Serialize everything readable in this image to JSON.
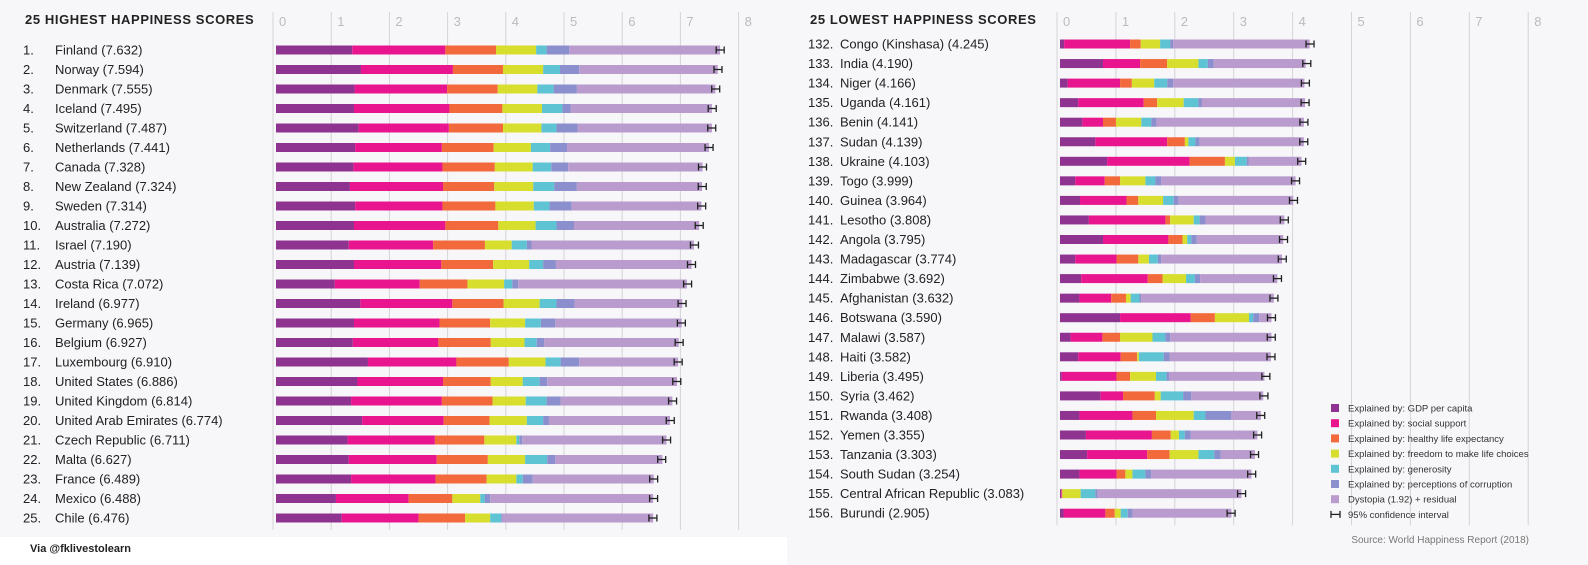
{
  "chart_data": [
    {
      "type": "bar",
      "stacked": true,
      "orientation": "horizontal",
      "title": "25 HIGHEST HAPPINESS SCORES",
      "xlim": [
        0,
        8
      ],
      "x_ticks": [
        "0",
        "1",
        "2",
        "3",
        "4",
        "5",
        "6",
        "7",
        "8"
      ],
      "grid": true,
      "rows": [
        {
          "label": "1.   Finland (7.632)",
          "segments": [
            1.31,
            1.6,
            0.87,
            0.69,
            0.18,
            0.39,
            2.59
          ],
          "score": 7.632
        },
        {
          "label": "2.   Norway (7.594)",
          "segments": [
            1.46,
            1.58,
            0.86,
            0.69,
            0.29,
            0.33,
            2.38
          ],
          "score": 7.594
        },
        {
          "label": "3.   Denmark (7.555)",
          "segments": [
            1.35,
            1.59,
            0.87,
            0.68,
            0.28,
            0.4,
            2.38
          ],
          "score": 7.555
        },
        {
          "label": "4.   Iceland (7.495)",
          "segments": [
            1.34,
            1.64,
            0.91,
            0.68,
            0.35,
            0.14,
            2.43
          ],
          "score": 7.495
        },
        {
          "label": "5.   Switzerland (7.487)",
          "segments": [
            1.42,
            1.55,
            0.93,
            0.66,
            0.26,
            0.36,
            2.31
          ],
          "score": 7.487
        },
        {
          "label": "6.   Netherlands (7.441)",
          "segments": [
            1.36,
            1.49,
            0.89,
            0.64,
            0.33,
            0.29,
            2.44
          ],
          "score": 7.441
        },
        {
          "label": "7.   Canada (7.328)",
          "segments": [
            1.33,
            1.53,
            0.9,
            0.65,
            0.32,
            0.29,
            2.31
          ],
          "score": 7.328
        },
        {
          "label": "8.   New Zealand (7.324)",
          "segments": [
            1.27,
            1.6,
            0.88,
            0.67,
            0.36,
            0.39,
            2.15
          ],
          "score": 7.324
        },
        {
          "label": "9.   Sweden (7.314)",
          "segments": [
            1.36,
            1.5,
            0.91,
            0.66,
            0.27,
            0.38,
            2.23
          ],
          "score": 7.314
        },
        {
          "label": "10.  Australia (7.272)",
          "segments": [
            1.34,
            1.57,
            0.91,
            0.64,
            0.36,
            0.3,
            2.15
          ],
          "score": 7.272
        },
        {
          "label": "11.  Israel (7.190)",
          "segments": [
            1.25,
            1.45,
            0.89,
            0.46,
            0.26,
            0.08,
            2.79
          ],
          "score": 7.19
        },
        {
          "label": "12.  Austria (7.139)",
          "segments": [
            1.34,
            1.5,
            0.89,
            0.62,
            0.24,
            0.22,
            2.33
          ],
          "score": 7.139
        },
        {
          "label": "13.  Costa Rica (7.072)",
          "segments": [
            1.01,
            1.46,
            0.82,
            0.63,
            0.14,
            0.1,
            2.9
          ],
          "score": 7.072
        },
        {
          "label": "14.  Ireland (6.977)",
          "segments": [
            1.45,
            1.58,
            0.88,
            0.62,
            0.29,
            0.31,
            1.85
          ],
          "score": 6.977
        },
        {
          "label": "15.  Germany (6.965)",
          "segments": [
            1.34,
            1.47,
            0.87,
            0.6,
            0.27,
            0.25,
            2.17
          ],
          "score": 6.965
        },
        {
          "label": "16.  Belgium (6.927)",
          "segments": [
            1.32,
            1.47,
            0.9,
            0.58,
            0.21,
            0.13,
            2.31
          ],
          "score": 6.927
        },
        {
          "label": "17.  Luxembourg (6.910)",
          "segments": [
            1.58,
            1.52,
            0.9,
            0.63,
            0.26,
            0.32,
            1.7
          ],
          "score": 6.91
        },
        {
          "label": "18.  United States (6.886)",
          "segments": [
            1.4,
            1.47,
            0.82,
            0.55,
            0.29,
            0.13,
            2.23
          ],
          "score": 6.886
        },
        {
          "label": "19.  United Kingdom (6.814)",
          "segments": [
            1.29,
            1.56,
            0.87,
            0.57,
            0.36,
            0.24,
            1.92
          ],
          "score": 6.814
        },
        {
          "label": "20.  United Arab Emirates (6.774)",
          "segments": [
            1.48,
            1.4,
            0.79,
            0.64,
            0.28,
            0.1,
            2.08
          ],
          "score": 6.774
        },
        {
          "label": "21.  Czech Republic (6.711)",
          "segments": [
            1.23,
            1.5,
            0.85,
            0.55,
            0.05,
            0.05,
            2.48
          ],
          "score": 6.711
        },
        {
          "label": "22.  Malta (6.627)",
          "segments": [
            1.25,
            1.51,
            0.88,
            0.64,
            0.38,
            0.14,
            1.84
          ],
          "score": 6.627
        },
        {
          "label": "23.  France (6.489)",
          "segments": [
            1.29,
            1.45,
            0.88,
            0.51,
            0.11,
            0.17,
            2.08
          ],
          "score": 6.489
        },
        {
          "label": "24.  Mexico (6.488)",
          "segments": [
            1.03,
            1.25,
            0.75,
            0.48,
            0.08,
            0.09,
            2.8
          ],
          "score": 6.488
        },
        {
          "label": "25.  Chile (6.476)",
          "segments": [
            1.13,
            1.32,
            0.8,
            0.43,
            0.19,
            0.02,
            2.59
          ],
          "score": 6.476
        }
      ]
    },
    {
      "type": "bar",
      "stacked": true,
      "orientation": "horizontal",
      "title": "25 LOWEST HAPPINESS SCORES",
      "xlim": [
        0,
        8
      ],
      "x_ticks": [
        "0",
        "1",
        "2",
        "3",
        "4",
        "5",
        "6",
        "7",
        "8"
      ],
      "grid": true,
      "rows": [
        {
          "label": "132.  Congo (Kinshasa) (4.245)",
          "segments": [
            0.07,
            1.12,
            0.18,
            0.33,
            0.17,
            0.05,
            2.32
          ],
          "score": 4.245
        },
        {
          "label": "133.  India (4.190)",
          "segments": [
            0.73,
            0.63,
            0.46,
            0.53,
            0.16,
            0.1,
            1.56
          ],
          "score": 4.19
        },
        {
          "label": "134.  Niger (4.166)",
          "segments": [
            0.13,
            0.89,
            0.2,
            0.38,
            0.22,
            0.1,
            2.23
          ],
          "score": 4.166
        },
        {
          "label": "135.  Uganda (4.161)",
          "segments": [
            0.31,
            1.11,
            0.23,
            0.45,
            0.25,
            0.06,
            1.75
          ],
          "score": 4.161
        },
        {
          "label": "136.  Benin (4.141)",
          "segments": [
            0.38,
            0.35,
            0.22,
            0.43,
            0.17,
            0.09,
            2.5
          ],
          "score": 4.141
        },
        {
          "label": "137.  Sudan (4.139)",
          "segments": [
            0.6,
            1.22,
            0.3,
            0.06,
            0.12,
            0.07,
            1.77
          ],
          "score": 4.139
        },
        {
          "label": "138.  Ukraine (4.103)",
          "segments": [
            0.8,
            1.4,
            0.6,
            0.17,
            0.2,
            0.03,
            0.9
          ],
          "score": 4.103
        },
        {
          "label": "139.  Togo (3.999)",
          "segments": [
            0.26,
            0.5,
            0.26,
            0.43,
            0.17,
            0.1,
            2.28
          ],
          "score": 3.999
        },
        {
          "label": "140.  Guinea (3.964)",
          "segments": [
            0.34,
            0.79,
            0.2,
            0.42,
            0.18,
            0.08,
            1.95
          ],
          "score": 3.964
        },
        {
          "label": "141.  Lesotho (3.808)",
          "segments": [
            0.49,
            1.3,
            0.08,
            0.4,
            0.1,
            0.1,
            1.34
          ],
          "score": 3.808
        },
        {
          "label": "142.  Angola (3.795)",
          "segments": [
            0.73,
            1.11,
            0.24,
            0.08,
            0.07,
            0.09,
            1.47
          ],
          "score": 3.795
        },
        {
          "label": "143.  Madagascar (3.774)",
          "segments": [
            0.26,
            0.7,
            0.37,
            0.18,
            0.15,
            0.06,
            2.05
          ],
          "score": 3.774
        },
        {
          "label": "144.  Zimbabwe (3.692)",
          "segments": [
            0.36,
            1.13,
            0.25,
            0.4,
            0.15,
            0.09,
            1.31
          ],
          "score": 3.692
        },
        {
          "label": "145.  Afghanistan (3.632)",
          "segments": [
            0.33,
            0.54,
            0.25,
            0.08,
            0.15,
            0.03,
            2.25
          ],
          "score": 3.632
        },
        {
          "label": "146.  Botswana (3.590)",
          "segments": [
            1.02,
            1.2,
            0.41,
            0.58,
            0.07,
            0.1,
            0.21
          ],
          "score": 3.59
        },
        {
          "label": "147.  Malawi (3.587)",
          "segments": [
            0.18,
            0.54,
            0.3,
            0.55,
            0.22,
            0.08,
            1.72
          ],
          "score": 3.587
        },
        {
          "label": "148.  Haiti (3.582)",
          "segments": [
            0.31,
            0.72,
            0.28,
            0.03,
            0.42,
            0.1,
            1.72
          ],
          "score": 3.582
        },
        {
          "label": "149.  Liberia (3.495)",
          "segments": [
            0.03,
            0.93,
            0.23,
            0.44,
            0.18,
            0.04,
            1.62
          ],
          "score": 3.495
        },
        {
          "label": "150.  Syria (3.462)",
          "segments": [
            0.69,
            0.38,
            0.54,
            0.1,
            0.38,
            0.14,
            1.22
          ],
          "score": 3.462
        },
        {
          "label": "151.  Rwanda (3.408)",
          "segments": [
            0.33,
            0.9,
            0.4,
            0.64,
            0.2,
            0.44,
            0.5
          ],
          "score": 3.408
        },
        {
          "label": "152.  Yemen (3.355)",
          "segments": [
            0.44,
            1.12,
            0.32,
            0.14,
            0.1,
            0.1,
            1.13
          ],
          "score": 3.355
        },
        {
          "label": "153.  Tanzania (3.303)",
          "segments": [
            0.46,
            1.02,
            0.38,
            0.49,
            0.27,
            0.11,
            0.58
          ],
          "score": 3.303
        },
        {
          "label": "154.  South Sudan (3.254)",
          "segments": [
            0.33,
            0.63,
            0.15,
            0.12,
            0.22,
            0.1,
            1.7
          ],
          "score": 3.254
        },
        {
          "label": "155.  Central African Republic (3.083)",
          "segments": [
            0.02,
            0.01,
            0.01,
            0.31,
            0.25,
            0.04,
            2.44
          ],
          "score": 3.083
        },
        {
          "label": "156.  Burundi (2.905)",
          "segments": [
            0.06,
            0.71,
            0.16,
            0.1,
            0.12,
            0.08,
            1.68
          ],
          "score": 2.905
        }
      ]
    }
  ],
  "legend": {
    "items": [
      {
        "label": "Explained by: GDP per capita",
        "color": "#8e3390"
      },
      {
        "label": "Explained by: social support",
        "color": "#e8158e"
      },
      {
        "label": "Explained by: healthy life expectancy",
        "color": "#f26a3b"
      },
      {
        "label": "Explained by: freedom to make life choices",
        "color": "#d8de2e"
      },
      {
        "label": "Explained by: generosity",
        "color": "#5ec3d3"
      },
      {
        "label": "Explained by: perceptions of corruption",
        "color": "#8c8fcd"
      },
      {
        "label": "Dystopia (1.92) + residual",
        "color": "#b99ccd"
      }
    ],
    "ci_label": "95% confidence interval",
    "placement": "bottom-right"
  },
  "source": "Source: World Happiness Report (2018)",
  "credit": "Via @fklivestolearn"
}
